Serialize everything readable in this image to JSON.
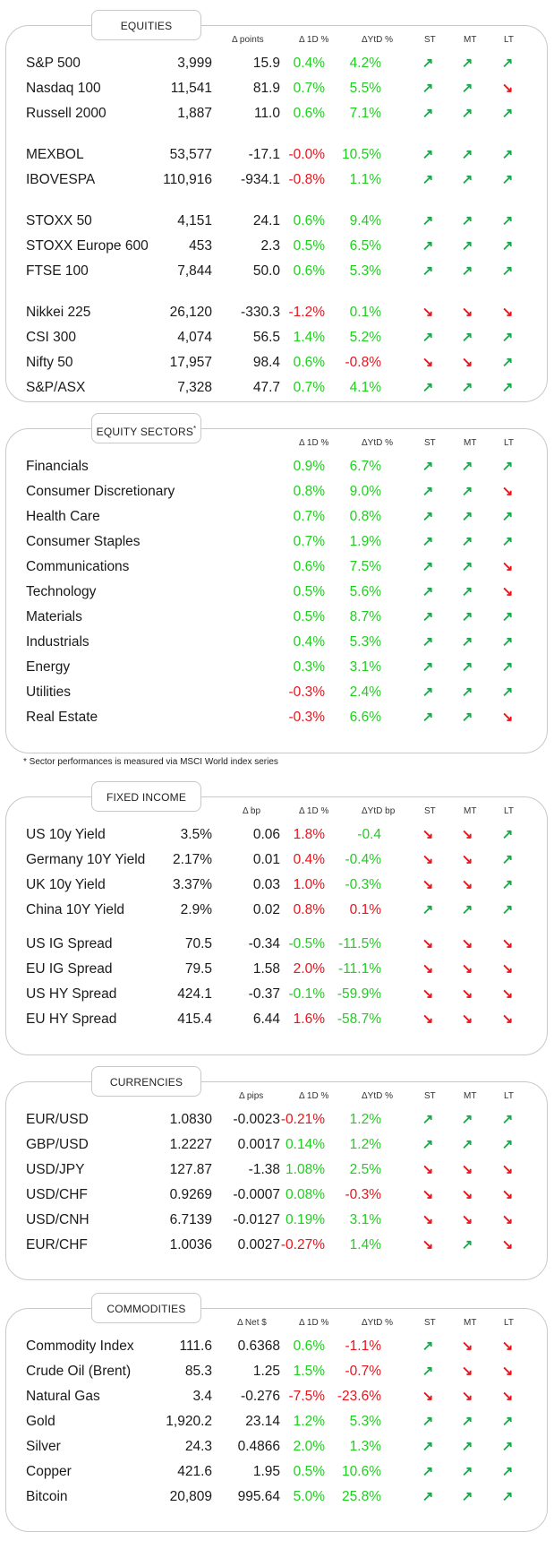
{
  "headers": {
    "points": "Δ points",
    "bp": "Δ bp",
    "pips": "Δ pips",
    "net": "Δ Net $",
    "d1": "Δ 1D %",
    "ytd": "ΔYtD %",
    "ytd_bp": "ΔYtD bp",
    "st": "ST",
    "mt": "MT",
    "lt": "LT"
  },
  "equities": {
    "title": "EQUITIES",
    "rows": [
      {
        "name": "S&P 500",
        "value": "3,999",
        "change": "15.9",
        "d1": "0.4%",
        "ytd": "4.2%",
        "d1_sign": "pos",
        "ytd_sign": "pos",
        "st": "up",
        "mt": "up",
        "lt": "up"
      },
      {
        "name": "Nasdaq 100",
        "value": "11,541",
        "change": "81.9",
        "d1": "0.7%",
        "ytd": "5.5%",
        "d1_sign": "pos",
        "ytd_sign": "pos",
        "st": "up",
        "mt": "up",
        "lt": "down"
      },
      {
        "name": "Russell 2000",
        "value": "1,887",
        "change": "11.0",
        "d1": "0.6%",
        "ytd": "7.1%",
        "d1_sign": "pos",
        "ytd_sign": "pos",
        "st": "up",
        "mt": "up",
        "lt": "up"
      },
      {
        "name": "MEXBOL",
        "value": "53,577",
        "change": "-17.1",
        "d1": "-0.0%",
        "ytd": "10.5%",
        "d1_sign": "neg",
        "ytd_sign": "pos",
        "st": "up",
        "mt": "up",
        "lt": "up"
      },
      {
        "name": "IBOVESPA",
        "value": "110,916",
        "change": "-934.1",
        "d1": "-0.8%",
        "ytd": "1.1%",
        "d1_sign": "neg",
        "ytd_sign": "pos",
        "st": "up",
        "mt": "up",
        "lt": "up"
      },
      {
        "name": "STOXX 50",
        "value": "4,151",
        "change": "24.1",
        "d1": "0.6%",
        "ytd": "9.4%",
        "d1_sign": "pos",
        "ytd_sign": "pos",
        "st": "up",
        "mt": "up",
        "lt": "up"
      },
      {
        "name": "STOXX Europe 600",
        "value": "453",
        "change": "2.3",
        "d1": "0.5%",
        "ytd": "6.5%",
        "d1_sign": "pos",
        "ytd_sign": "pos",
        "st": "up",
        "mt": "up",
        "lt": "up"
      },
      {
        "name": "FTSE 100",
        "value": "7,844",
        "change": "50.0",
        "d1": "0.6%",
        "ytd": "5.3%",
        "d1_sign": "pos",
        "ytd_sign": "pos",
        "st": "up",
        "mt": "up",
        "lt": "up"
      },
      {
        "name": "Nikkei 225",
        "value": "26,120",
        "change": "-330.3",
        "d1": "-1.2%",
        "ytd": "0.1%",
        "d1_sign": "neg",
        "ytd_sign": "pos",
        "st": "down",
        "mt": "down",
        "lt": "down"
      },
      {
        "name": "CSI 300",
        "value": "4,074",
        "change": "56.5",
        "d1": "1.4%",
        "ytd": "5.2%",
        "d1_sign": "pos",
        "ytd_sign": "pos",
        "st": "up",
        "mt": "up",
        "lt": "up"
      },
      {
        "name": "Nifty  50",
        "value": "17,957",
        "change": "98.4",
        "d1": "0.6%",
        "ytd": "-0.8%",
        "d1_sign": "pos",
        "ytd_sign": "neg",
        "st": "down",
        "mt": "down",
        "lt": "up"
      },
      {
        "name": "S&P/ASX",
        "value": "7,328",
        "change": "47.7",
        "d1": "0.7%",
        "ytd": "4.1%",
        "d1_sign": "pos",
        "ytd_sign": "pos",
        "st": "up",
        "mt": "up",
        "lt": "up"
      }
    ]
  },
  "sectors": {
    "title": "EQUITY SECTORS",
    "title_mark": "*",
    "footnote": "* Sector performances is measured via MSCI World index series",
    "rows": [
      {
        "name": "Financials",
        "d1": "0.9%",
        "ytd": "6.7%",
        "d1_sign": "pos",
        "ytd_sign": "pos",
        "st": "up",
        "mt": "up",
        "lt": "up"
      },
      {
        "name": "Consumer Discretionary",
        "d1": "0.8%",
        "ytd": "9.0%",
        "d1_sign": "pos",
        "ytd_sign": "pos",
        "st": "up",
        "mt": "up",
        "lt": "down"
      },
      {
        "name": "Health Care",
        "d1": "0.7%",
        "ytd": "0.8%",
        "d1_sign": "pos",
        "ytd_sign": "pos",
        "st": "up",
        "mt": "up",
        "lt": "up"
      },
      {
        "name": "Consumer Staples",
        "d1": "0.7%",
        "ytd": "1.9%",
        "d1_sign": "pos",
        "ytd_sign": "pos",
        "st": "up",
        "mt": "up",
        "lt": "up"
      },
      {
        "name": "Communications",
        "d1": "0.6%",
        "ytd": "7.5%",
        "d1_sign": "pos",
        "ytd_sign": "pos",
        "st": "up",
        "mt": "up",
        "lt": "down"
      },
      {
        "name": "Technology",
        "d1": "0.5%",
        "ytd": "5.6%",
        "d1_sign": "pos",
        "ytd_sign": "pos",
        "st": "up",
        "mt": "up",
        "lt": "down"
      },
      {
        "name": "Materials",
        "d1": "0.5%",
        "ytd": "8.7%",
        "d1_sign": "pos",
        "ytd_sign": "pos",
        "st": "up",
        "mt": "up",
        "lt": "up"
      },
      {
        "name": "Industrials",
        "d1": "0.4%",
        "ytd": "5.3%",
        "d1_sign": "pos",
        "ytd_sign": "pos",
        "st": "up",
        "mt": "up",
        "lt": "up"
      },
      {
        "name": "Energy",
        "d1": "0.3%",
        "ytd": "3.1%",
        "d1_sign": "pos",
        "ytd_sign": "pos",
        "st": "up",
        "mt": "up",
        "lt": "up"
      },
      {
        "name": "Utilities",
        "d1": "-0.3%",
        "ytd": "2.4%",
        "d1_sign": "neg",
        "ytd_sign": "pos",
        "st": "up",
        "mt": "up",
        "lt": "up"
      },
      {
        "name": "Real Estate",
        "d1": "-0.3%",
        "ytd": "6.6%",
        "d1_sign": "neg",
        "ytd_sign": "pos",
        "st": "up",
        "mt": "up",
        "lt": "down"
      }
    ]
  },
  "fixed_income": {
    "title": "FIXED INCOME",
    "rows": [
      {
        "name": "US 10y Yield",
        "value": "3.5%",
        "change": "0.06",
        "d1": "1.8%",
        "ytd": "-0.4",
        "d1_sign": "neg",
        "ytd_sign": "pos",
        "st": "down",
        "mt": "down",
        "lt": "up"
      },
      {
        "name": "Germany 10Y Yield",
        "value": "2.17%",
        "change": "0.01",
        "d1": "0.4%",
        "ytd": "-0.4%",
        "d1_sign": "neg",
        "ytd_sign": "pos",
        "st": "down",
        "mt": "down",
        "lt": "up"
      },
      {
        "name": "UK 10y Yield",
        "value": "3.37%",
        "change": "0.03",
        "d1": "1.0%",
        "ytd": "-0.3%",
        "d1_sign": "neg",
        "ytd_sign": "pos",
        "st": "down",
        "mt": "down",
        "lt": "up"
      },
      {
        "name": "China 10Y Yield",
        "value": "2.9%",
        "change": "0.02",
        "d1": "0.8%",
        "ytd": "0.1%",
        "d1_sign": "neg",
        "ytd_sign": "neg",
        "st": "up",
        "mt": "up",
        "lt": "up"
      },
      {
        "name": "US IG Spread",
        "value": "70.5",
        "change": "-0.34",
        "d1": "-0.5%",
        "ytd": "-11.5%",
        "d1_sign": "pos",
        "ytd_sign": "pos",
        "st": "down",
        "mt": "down",
        "lt": "down"
      },
      {
        "name": "EU IG Spread",
        "value": "79.5",
        "change": "1.58",
        "d1": "2.0%",
        "ytd": "-11.1%",
        "d1_sign": "neg",
        "ytd_sign": "pos",
        "st": "down",
        "mt": "down",
        "lt": "down"
      },
      {
        "name": "US HY Spread",
        "value": "424.1",
        "change": "-0.37",
        "d1": "-0.1%",
        "ytd": "-59.9%",
        "d1_sign": "pos",
        "ytd_sign": "pos",
        "st": "down",
        "mt": "down",
        "lt": "down"
      },
      {
        "name": "EU HY Spread",
        "value": "415.4",
        "change": "6.44",
        "d1": "1.6%",
        "ytd": "-58.7%",
        "d1_sign": "neg",
        "ytd_sign": "pos",
        "st": "down",
        "mt": "down",
        "lt": "down"
      }
    ]
  },
  "currencies": {
    "title": "CURRENCIES",
    "rows": [
      {
        "name": "EUR/USD",
        "value": "1.0830",
        "change": "-0.0023",
        "d1": "-0.21%",
        "ytd": "1.2%",
        "d1_sign": "neg",
        "ytd_sign": "pos",
        "st": "up",
        "mt": "up",
        "lt": "up"
      },
      {
        "name": "GBP/USD",
        "value": "1.2227",
        "change": "0.0017",
        "d1": "0.14%",
        "ytd": "1.2%",
        "d1_sign": "pos",
        "ytd_sign": "pos",
        "st": "up",
        "mt": "up",
        "lt": "up"
      },
      {
        "name": "USD/JPY",
        "value": "127.87",
        "change": "-1.38",
        "d1": "1.08%",
        "ytd": "2.5%",
        "d1_sign": "pos",
        "ytd_sign": "pos",
        "st": "down",
        "mt": "down",
        "lt": "down"
      },
      {
        "name": "USD/CHF",
        "value": "0.9269",
        "change": "-0.0007",
        "d1": "0.08%",
        "ytd": "-0.3%",
        "d1_sign": "pos",
        "ytd_sign": "neg",
        "st": "down",
        "mt": "down",
        "lt": "down"
      },
      {
        "name": "USD/CNH",
        "value": "6.7139",
        "change": "-0.0127",
        "d1": "0.19%",
        "ytd": "3.1%",
        "d1_sign": "pos",
        "ytd_sign": "pos",
        "st": "down",
        "mt": "down",
        "lt": "down"
      },
      {
        "name": "EUR/CHF",
        "value": "1.0036",
        "change": "0.0027",
        "d1": "-0.27%",
        "ytd": "1.4%",
        "d1_sign": "neg",
        "ytd_sign": "pos",
        "st": "down",
        "mt": "up",
        "lt": "down"
      }
    ]
  },
  "commodities": {
    "title": "COMMODITIES",
    "rows": [
      {
        "name": "Commodity Index",
        "value": "111.6",
        "change": "0.6368",
        "d1": "0.6%",
        "ytd": "-1.1%",
        "d1_sign": "pos",
        "ytd_sign": "neg",
        "st": "up",
        "mt": "down",
        "lt": "down"
      },
      {
        "name": "Crude Oil (Brent)",
        "value": "85.3",
        "change": "1.25",
        "d1": "1.5%",
        "ytd": "-0.7%",
        "d1_sign": "pos",
        "ytd_sign": "neg",
        "st": "up",
        "mt": "down",
        "lt": "down"
      },
      {
        "name": "Natural Gas",
        "value": "3.4",
        "change": "-0.276",
        "d1": "-7.5%",
        "ytd": "-23.6%",
        "d1_sign": "neg",
        "ytd_sign": "neg",
        "st": "down",
        "mt": "down",
        "lt": "down"
      },
      {
        "name": "Gold",
        "value": "1,920.2",
        "change": "23.14",
        "d1": "1.2%",
        "ytd": "5.3%",
        "d1_sign": "pos",
        "ytd_sign": "pos",
        "st": "up",
        "mt": "up",
        "lt": "up"
      },
      {
        "name": "Silver",
        "value": "24.3",
        "change": "0.4866",
        "d1": "2.0%",
        "ytd": "1.3%",
        "d1_sign": "pos",
        "ytd_sign": "pos",
        "st": "up",
        "mt": "up",
        "lt": "up"
      },
      {
        "name": "Copper",
        "value": "421.6",
        "change": "1.95",
        "d1": "0.5%",
        "ytd": "10.6%",
        "d1_sign": "pos",
        "ytd_sign": "pos",
        "st": "up",
        "mt": "up",
        "lt": "up"
      },
      {
        "name": "Bitcoin",
        "value": "20,809",
        "change": "995.64",
        "d1": "5.0%",
        "ytd": "25.8%",
        "d1_sign": "pos",
        "ytd_sign": "pos",
        "st": "up",
        "mt": "up",
        "lt": "up"
      }
    ]
  },
  "icons": {
    "up": "↗",
    "down": "↘",
    "up_color": "#19a94a",
    "down_color": "#e8141c",
    "pos_color": "#1ed01e",
    "neg_color": "#e8141c"
  }
}
